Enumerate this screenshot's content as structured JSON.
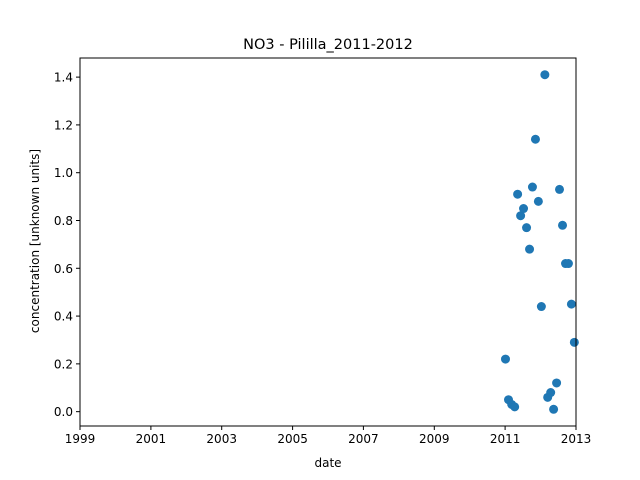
{
  "chart_data": {
    "type": "scatter",
    "title": "NO3 - Pililla_2011-2012",
    "xlabel": "date",
    "ylabel": "concentration [unknown units]",
    "xlim": [
      "1999-01-01",
      "2013-01-01"
    ],
    "ylim": [
      -0.06,
      1.48
    ],
    "x_ticks": [
      "1999",
      "2001",
      "2003",
      "2005",
      "2007",
      "2009",
      "2011",
      "2013"
    ],
    "y_ticks": [
      "0.0",
      "0.2",
      "0.4",
      "0.6",
      "0.8",
      "1.0",
      "1.2",
      "1.4"
    ],
    "grid": false,
    "marker_color": "#1f77b4",
    "points": [
      {
        "x": "2011-01-05",
        "y": 0.22
      },
      {
        "x": "2011-02-05",
        "y": 0.05
      },
      {
        "x": "2011-03-10",
        "y": 0.03
      },
      {
        "x": "2011-04-10",
        "y": 0.02
      },
      {
        "x": "2011-05-10",
        "y": 0.91
      },
      {
        "x": "2011-06-10",
        "y": 0.82
      },
      {
        "x": "2011-07-10",
        "y": 0.85
      },
      {
        "x": "2011-08-10",
        "y": 0.77
      },
      {
        "x": "2011-09-10",
        "y": 0.68
      },
      {
        "x": "2011-10-10",
        "y": 0.94
      },
      {
        "x": "2011-11-10",
        "y": 1.14
      },
      {
        "x": "2011-12-10",
        "y": 0.88
      },
      {
        "x": "2012-01-10",
        "y": 0.44
      },
      {
        "x": "2012-02-15",
        "y": 1.41
      },
      {
        "x": "2012-03-15",
        "y": 0.06
      },
      {
        "x": "2012-04-15",
        "y": 0.08
      },
      {
        "x": "2012-05-15",
        "y": 0.01
      },
      {
        "x": "2012-06-15",
        "y": 0.12
      },
      {
        "x": "2012-07-15",
        "y": 0.93
      },
      {
        "x": "2012-08-15",
        "y": 0.78
      },
      {
        "x": "2012-09-15",
        "y": 0.62
      },
      {
        "x": "2012-10-15",
        "y": 0.62
      },
      {
        "x": "2012-11-15",
        "y": 0.45
      },
      {
        "x": "2012-12-15",
        "y": 0.29
      }
    ]
  }
}
